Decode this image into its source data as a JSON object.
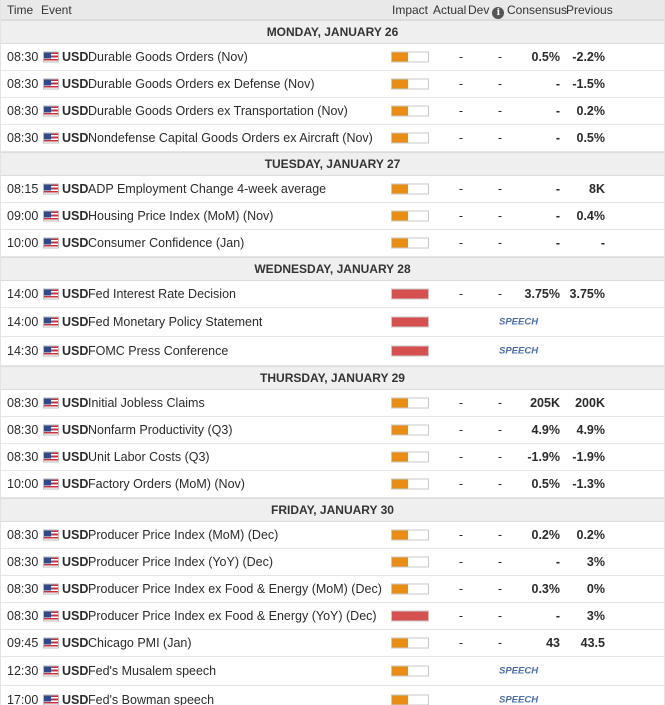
{
  "header": {
    "time": "Time",
    "event": "Event",
    "impact": "Impact",
    "actual": "Actual",
    "dev": "Dev",
    "consensus": "Consensus",
    "previous": "Previous",
    "info_icon": "i"
  },
  "colors": {
    "medium_impact": "#ea8d14",
    "high_impact": "#d65050",
    "speech_text": "#4a6fa8"
  },
  "days": [
    {
      "label": "MONDAY, JANUARY 26",
      "events": [
        {
          "time": "08:30",
          "currency": "USD",
          "name": "Durable Goods Orders (Nov)",
          "impact": "medium",
          "impact_level": 0.45,
          "actual": "-",
          "dev": "-",
          "consensus": "0.5%",
          "previous": "-2.2%"
        },
        {
          "time": "08:30",
          "currency": "USD",
          "name": "Durable Goods Orders ex Defense (Nov)",
          "impact": "medium",
          "impact_level": 0.45,
          "actual": "-",
          "dev": "-",
          "consensus": "-",
          "previous": "-1.5%"
        },
        {
          "time": "08:30",
          "currency": "USD",
          "name": "Durable Goods Orders ex Transportation (Nov)",
          "impact": "medium",
          "impact_level": 0.45,
          "actual": "-",
          "dev": "-",
          "consensus": "-",
          "previous": "0.2%"
        },
        {
          "time": "08:30",
          "currency": "USD",
          "name": "Nondefense Capital Goods Orders ex Aircraft (Nov)",
          "impact": "medium",
          "impact_level": 0.45,
          "actual": "-",
          "dev": "-",
          "consensus": "-",
          "previous": "0.5%"
        }
      ]
    },
    {
      "label": "TUESDAY, JANUARY 27",
      "events": [
        {
          "time": "08:15",
          "currency": "USD",
          "name": "ADP Employment Change 4-week average",
          "impact": "medium",
          "impact_level": 0.45,
          "actual": "-",
          "dev": "-",
          "consensus": "-",
          "previous": "8K"
        },
        {
          "time": "09:00",
          "currency": "USD",
          "name": "Housing Price Index (MoM) (Nov)",
          "impact": "medium",
          "impact_level": 0.45,
          "actual": "-",
          "dev": "-",
          "consensus": "-",
          "previous": "0.4%"
        },
        {
          "time": "10:00",
          "currency": "USD",
          "name": "Consumer Confidence (Jan)",
          "impact": "medium",
          "impact_level": 0.45,
          "actual": "-",
          "dev": "-",
          "consensus": "-",
          "previous": "-"
        }
      ]
    },
    {
      "label": "WEDNESDAY, JANUARY 28",
      "events": [
        {
          "time": "14:00",
          "currency": "USD",
          "name": "Fed Interest Rate Decision",
          "impact": "high",
          "impact_level": 1.0,
          "actual": "-",
          "dev": "-",
          "consensus": "3.75%",
          "previous": "3.75%"
        },
        {
          "time": "14:00",
          "currency": "USD",
          "name": "Fed Monetary Policy Statement",
          "impact": "high",
          "impact_level": 1.0,
          "speech": "SPEECH"
        },
        {
          "time": "14:30",
          "currency": "USD",
          "name": "FOMC Press Conference",
          "impact": "high",
          "impact_level": 1.0,
          "speech": "SPEECH"
        }
      ]
    },
    {
      "label": "THURSDAY, JANUARY 29",
      "events": [
        {
          "time": "08:30",
          "currency": "USD",
          "name": "Initial Jobless Claims",
          "impact": "medium",
          "impact_level": 0.45,
          "actual": "-",
          "dev": "-",
          "consensus": "205K",
          "previous": "200K"
        },
        {
          "time": "08:30",
          "currency": "USD",
          "name": "Nonfarm Productivity (Q3)",
          "impact": "medium",
          "impact_level": 0.45,
          "actual": "-",
          "dev": "-",
          "consensus": "4.9%",
          "previous": "4.9%"
        },
        {
          "time": "08:30",
          "currency": "USD",
          "name": "Unit Labor Costs (Q3)",
          "impact": "medium",
          "impact_level": 0.45,
          "actual": "-",
          "dev": "-",
          "consensus": "-1.9%",
          "previous": "-1.9%"
        },
        {
          "time": "10:00",
          "currency": "USD",
          "name": "Factory Orders (MoM) (Nov)",
          "impact": "medium",
          "impact_level": 0.45,
          "actual": "-",
          "dev": "-",
          "consensus": "0.5%",
          "previous": "-1.3%"
        }
      ]
    },
    {
      "label": "FRIDAY, JANUARY 30",
      "events": [
        {
          "time": "08:30",
          "currency": "USD",
          "name": "Producer Price Index (MoM) (Dec)",
          "impact": "medium",
          "impact_level": 0.45,
          "actual": "-",
          "dev": "-",
          "consensus": "0.2%",
          "previous": "0.2%"
        },
        {
          "time": "08:30",
          "currency": "USD",
          "name": "Producer Price Index (YoY) (Dec)",
          "impact": "medium",
          "impact_level": 0.45,
          "actual": "-",
          "dev": "-",
          "consensus": "-",
          "previous": "3%"
        },
        {
          "time": "08:30",
          "currency": "USD",
          "name": "Producer Price Index ex Food & Energy (MoM) (Dec)",
          "impact": "medium",
          "impact_level": 0.45,
          "actual": "-",
          "dev": "-",
          "consensus": "0.3%",
          "previous": "0%"
        },
        {
          "time": "08:30",
          "currency": "USD",
          "name": "Producer Price Index ex Food & Energy (YoY) (Dec)",
          "impact": "high",
          "impact_level": 1.0,
          "actual": "-",
          "dev": "-",
          "consensus": "-",
          "previous": "3%"
        },
        {
          "time": "09:45",
          "currency": "USD",
          "name": "Chicago PMI (Jan)",
          "impact": "medium",
          "impact_level": 0.45,
          "actual": "-",
          "dev": "-",
          "consensus": "43",
          "previous": "43.5"
        },
        {
          "time": "12:30",
          "currency": "USD",
          "name": "Fed's Musalem speech",
          "impact": "medium",
          "impact_level": 0.45,
          "speech": "SPEECH"
        },
        {
          "time": "17:00",
          "currency": "USD",
          "name": "Fed's Bowman speech",
          "impact": "medium",
          "impact_level": 0.45,
          "speech": "SPEECH"
        }
      ]
    }
  ]
}
